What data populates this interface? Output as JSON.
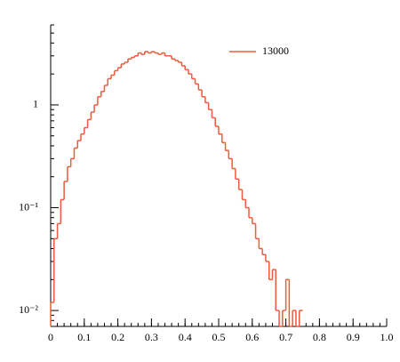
{
  "chart_data": {
    "type": "histogram",
    "bins": [
      0,
      0.01,
      0.02,
      0.03,
      0.04,
      0.05,
      0.06,
      0.07,
      0.08,
      0.09,
      0.1,
      0.11,
      0.12,
      0.13,
      0.14,
      0.15,
      0.16,
      0.17,
      0.18,
      0.19,
      0.2,
      0.21,
      0.22,
      0.23,
      0.24,
      0.25,
      0.26,
      0.27,
      0.28,
      0.29,
      0.3,
      0.31,
      0.32,
      0.33,
      0.34,
      0.35,
      0.36,
      0.37,
      0.38,
      0.39,
      0.4,
      0.41,
      0.42,
      0.43,
      0.44,
      0.45,
      0.46,
      0.47,
      0.48,
      0.49,
      0.5,
      0.51,
      0.52,
      0.53,
      0.54,
      0.55,
      0.56,
      0.57,
      0.58,
      0.59,
      0.6,
      0.61,
      0.62,
      0.63,
      0.64,
      0.65,
      0.66,
      0.67,
      0.68,
      0.69,
      0.7,
      0.71,
      0.72,
      0.73,
      0.74,
      0.75
    ],
    "series": [
      {
        "name": "13000",
        "color": "#ee5a3c",
        "values": [
          0.012,
          0.05,
          0.07,
          0.12,
          0.18,
          0.25,
          0.3,
          0.38,
          0.45,
          0.52,
          0.6,
          0.72,
          0.85,
          1.0,
          1.2,
          1.35,
          1.55,
          1.8,
          1.95,
          2.15,
          2.3,
          2.5,
          2.6,
          2.8,
          2.9,
          3.0,
          3.2,
          3.1,
          3.3,
          3.2,
          3.3,
          3.2,
          3.1,
          3.2,
          3.0,
          3.0,
          2.8,
          2.7,
          2.6,
          2.4,
          2.2,
          2.0,
          1.8,
          1.6,
          1.4,
          1.2,
          1.05,
          0.9,
          0.75,
          0.62,
          0.52,
          0.43,
          0.36,
          0.3,
          0.24,
          0.19,
          0.15,
          0.12,
          0.1,
          0.08,
          0.07,
          0.05,
          0.04,
          0.035,
          0.03,
          0.02,
          0.025,
          0.01,
          0,
          0.01,
          0.02,
          0,
          0.01,
          0,
          0.01
        ]
      }
    ],
    "xlim": [
      0,
      1
    ],
    "xticks": [
      0,
      0.1,
      0.2,
      0.3,
      0.4,
      0.5,
      0.6,
      0.7,
      0.8,
      0.9,
      {
        "value": 1,
        "label": "1.0"
      }
    ],
    "ylim": [
      0.007,
      6
    ],
    "yticks": [
      {
        "value": 0.01,
        "label": "10⁻²"
      },
      {
        "value": 0.1,
        "label": "10⁻¹"
      },
      1
    ],
    "log_y": true,
    "legend": "upper right"
  }
}
